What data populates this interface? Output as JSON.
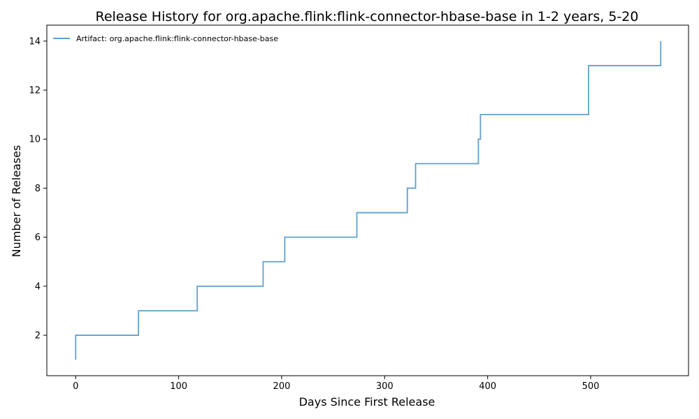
{
  "chart_data": {
    "type": "line",
    "step": "post",
    "title": "Release History for org.apache.flink:flink-connector-hbase-base in 1-2 years, 5-20",
    "xlabel": "Days Since First Release",
    "ylabel": "Number of Releases",
    "xlim": [
      -28,
      595
    ],
    "ylim": [
      0.35,
      14.65
    ],
    "xticks": [
      0,
      100,
      200,
      300,
      400,
      500
    ],
    "yticks": [
      2,
      4,
      6,
      8,
      10,
      12,
      14
    ],
    "grid": false,
    "legend_position": "top-left",
    "series": [
      {
        "name": "Artifact: org.apache.flink:flink-connector-hbase-base",
        "color": "#1f77b4",
        "x": [
          0,
          0,
          61,
          118,
          182,
          203,
          273,
          322,
          330,
          391,
          393,
          498,
          568
        ],
        "y": [
          1,
          2,
          3,
          4,
          5,
          6,
          7,
          8,
          9,
          10,
          11,
          13,
          14
        ]
      }
    ]
  }
}
